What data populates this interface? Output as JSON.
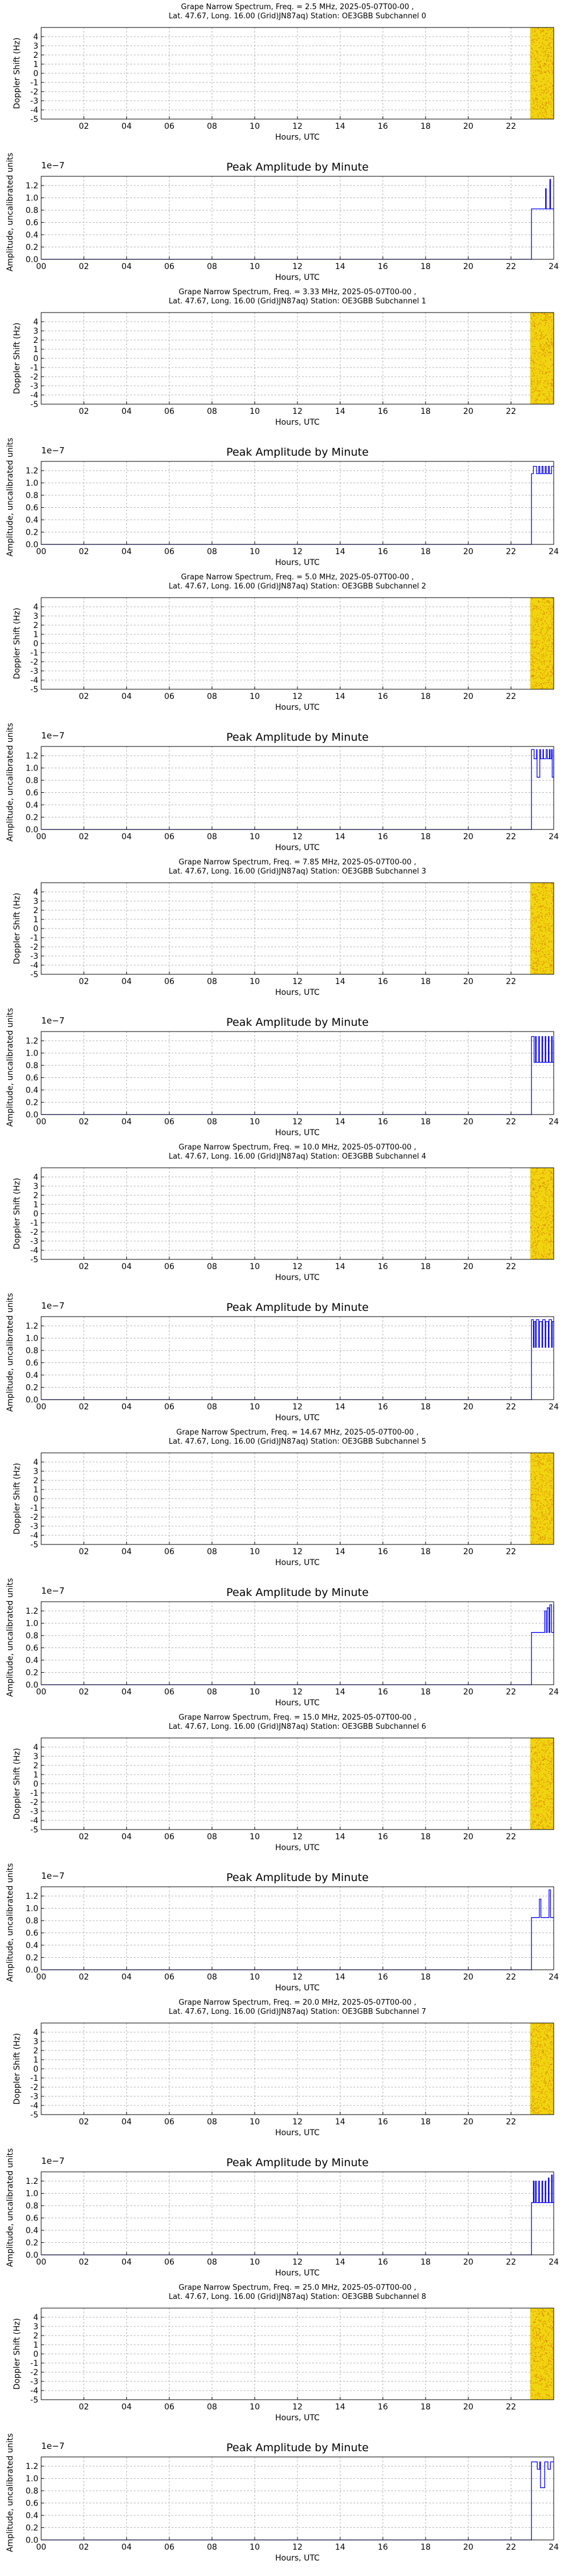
{
  "colors": {
    "spectrum_background": "#f2f0e6",
    "spectrum_fill": "#f1d410",
    "spectrum_speckle": "#d46a00",
    "amplitude_line": "#0000ff",
    "grid": "#b0b0b0"
  },
  "shared": {
    "title_line2": "Lat.  47.67, Long.  16.00 (Grid)JN87aq) Station: OE3GBB Subchannel",
    "spectrum_ylabel": "Doppler Shift (Hz)",
    "spectrum_xlabel": "Hours, UTC",
    "spectrum_xticks": [
      "02",
      "04",
      "06",
      "08",
      "10",
      "12",
      "14",
      "16",
      "18",
      "20",
      "22"
    ],
    "spectrum_yticks": [
      "4",
      "3",
      "2",
      "1",
      "0",
      "-1",
      "-2",
      "-3",
      "-4",
      "-5"
    ],
    "amp_title": "Peak Amplitude by Minute",
    "amp_ylabel": "Amplitude, uncalibrated units",
    "amp_xlabel": "Hours, UTC",
    "amp_offset_label": "1e−7",
    "amp_xticks": [
      "00",
      "02",
      "04",
      "06",
      "08",
      "10",
      "12",
      "14",
      "16",
      "18",
      "20",
      "22",
      "24"
    ],
    "amp_yticks": [
      "1.2",
      "1.0",
      "0.8",
      "0.6",
      "0.4",
      "0.2",
      "0.0"
    ]
  },
  "chart_data": [
    {
      "type": "heatmap",
      "title": "Grape Narrow Spectrum, Freq. = 2.5 MHz, 2025-05-07T00-00 ,",
      "subchannel": "0",
      "xlabel": "Hours, UTC",
      "ylabel": "Doppler Shift (Hz)",
      "xlim": [
        0,
        24
      ],
      "ylim": [
        -5,
        5
      ],
      "data_hours": [
        22.9,
        24.0
      ],
      "grid": true
    },
    {
      "type": "line",
      "title": "Peak Amplitude by Minute",
      "xlabel": "Hours, UTC",
      "ylabel": "Amplitude, uncalibrated units",
      "ylim": [
        0,
        1.35
      ],
      "y_scale": "1e-7",
      "xlim": [
        0,
        24
      ],
      "x": [
        0,
        22.95,
        22.96,
        23.6,
        23.62,
        23.65,
        23.8,
        23.82,
        23.85,
        24.0
      ],
      "values": [
        0,
        0,
        0.82,
        0.82,
        1.15,
        0.82,
        0.82,
        1.3,
        0.82,
        0.82
      ]
    },
    {
      "type": "heatmap",
      "title": "Grape Narrow Spectrum, Freq. = 3.33 MHz, 2025-05-07T00-00 ,",
      "subchannel": "1",
      "xlabel": "Hours, UTC",
      "ylabel": "Doppler Shift (Hz)",
      "xlim": [
        0,
        24
      ],
      "ylim": [
        -5,
        5
      ],
      "data_hours": [
        22.9,
        24.0
      ],
      "grid": true
    },
    {
      "type": "line",
      "title": "Peak Amplitude by Minute",
      "xlabel": "Hours, UTC",
      "ylabel": "Amplitude, uncalibrated units",
      "ylim": [
        0,
        1.35
      ],
      "y_scale": "1e-7",
      "xlim": [
        0,
        24
      ],
      "x": [
        0,
        22.95,
        22.96,
        23.05,
        23.15,
        23.2,
        23.3,
        23.35,
        23.45,
        23.5,
        23.6,
        23.65,
        23.75,
        23.8,
        23.9,
        24.0
      ],
      "values": [
        0,
        0,
        1.15,
        1.27,
        1.27,
        1.15,
        1.27,
        1.15,
        1.27,
        1.15,
        1.27,
        1.15,
        1.27,
        1.15,
        1.27,
        1.27
      ]
    },
    {
      "type": "heatmap",
      "title": "Grape Narrow Spectrum, Freq. = 5.0 MHz, 2025-05-07T00-00 ,",
      "subchannel": "2",
      "xlabel": "Hours, UTC",
      "ylabel": "Doppler Shift (Hz)",
      "xlim": [
        0,
        24
      ],
      "ylim": [
        -5,
        5
      ],
      "data_hours": [
        22.9,
        24.0
      ],
      "grid": true
    },
    {
      "type": "line",
      "title": "Peak Amplitude by Minute",
      "xlabel": "Hours, UTC",
      "ylabel": "Amplitude, uncalibrated units",
      "ylim": [
        0,
        1.35
      ],
      "y_scale": "1e-7",
      "xlim": [
        0,
        24
      ],
      "x": [
        0,
        22.95,
        22.96,
        23.05,
        23.08,
        23.2,
        23.22,
        23.35,
        23.38,
        23.5,
        23.52,
        23.65,
        23.7,
        23.8,
        23.83,
        23.9,
        23.93,
        24.0
      ],
      "values": [
        0,
        0,
        1.3,
        1.3,
        1.15,
        1.3,
        0.85,
        1.3,
        1.15,
        1.3,
        1.15,
        1.3,
        1.15,
        1.3,
        1.15,
        1.3,
        0.85,
        1.3
      ]
    },
    {
      "type": "heatmap",
      "title": "Grape Narrow Spectrum, Freq. = 7.85 MHz, 2025-05-07T00-00 ,",
      "subchannel": "3",
      "xlabel": "Hours, UTC",
      "ylabel": "Doppler Shift (Hz)",
      "xlim": [
        0,
        24
      ],
      "ylim": [
        -5,
        5
      ],
      "data_hours": [
        22.9,
        24.0
      ],
      "grid": true
    },
    {
      "type": "line",
      "title": "Peak Amplitude by Minute",
      "xlabel": "Hours, UTC",
      "ylabel": "Amplitude, uncalibrated units",
      "ylim": [
        0,
        1.35
      ],
      "y_scale": "1e-7",
      "xlim": [
        0,
        24
      ],
      "x": [
        0,
        22.95,
        22.96,
        23.05,
        23.08,
        23.15,
        23.18,
        23.3,
        23.33,
        23.45,
        23.48,
        23.6,
        23.63,
        23.75,
        23.78,
        23.9,
        23.93,
        24.0
      ],
      "values": [
        0,
        0,
        1.27,
        1.27,
        0.85,
        1.27,
        0.85,
        1.27,
        0.85,
        1.27,
        0.85,
        1.27,
        0.85,
        1.27,
        0.85,
        1.27,
        0.85,
        1.2
      ]
    },
    {
      "type": "heatmap",
      "title": "Grape Narrow Spectrum, Freq. = 10.0 MHz, 2025-05-07T00-00 ,",
      "subchannel": "4",
      "xlabel": "Hours, UTC",
      "ylabel": "Doppler Shift (Hz)",
      "xlim": [
        0,
        24
      ],
      "ylim": [
        -5,
        5
      ],
      "data_hours": [
        22.9,
        24.0
      ],
      "grid": true
    },
    {
      "type": "line",
      "title": "Peak Amplitude by Minute",
      "xlabel": "Hours, UTC",
      "ylabel": "Amplitude, uncalibrated units",
      "ylim": [
        0,
        1.35
      ],
      "y_scale": "1e-7",
      "xlim": [
        0,
        24
      ],
      "x": [
        0,
        22.95,
        22.96,
        23.05,
        23.08,
        23.15,
        23.18,
        23.3,
        23.33,
        23.45,
        23.48,
        23.6,
        23.63,
        23.75,
        23.78,
        23.9,
        23.93,
        24.0
      ],
      "values": [
        0,
        0,
        1.3,
        0.85,
        1.27,
        0.85,
        1.3,
        0.85,
        1.27,
        0.85,
        1.3,
        0.85,
        1.27,
        0.85,
        1.3,
        0.85,
        1.27,
        0.85
      ]
    },
    {
      "type": "heatmap",
      "title": "Grape Narrow Spectrum, Freq. = 14.67 MHz, 2025-05-07T00-00 ,",
      "subchannel": "5",
      "xlabel": "Hours, UTC",
      "ylabel": "Doppler Shift (Hz)",
      "xlim": [
        0,
        24
      ],
      "ylim": [
        -5,
        5
      ],
      "data_hours": [
        22.9,
        24.0
      ],
      "grid": true
    },
    {
      "type": "line",
      "title": "Peak Amplitude by Minute",
      "xlabel": "Hours, UTC",
      "ylabel": "Amplitude, uncalibrated units",
      "ylim": [
        0,
        1.35
      ],
      "y_scale": "1e-7",
      "xlim": [
        0,
        24
      ],
      "x": [
        0,
        22.95,
        22.96,
        23.55,
        23.58,
        23.65,
        23.7,
        23.78,
        23.82,
        23.9,
        24.0
      ],
      "values": [
        0,
        0,
        0.85,
        0.85,
        1.2,
        0.85,
        1.25,
        0.85,
        1.3,
        0.85,
        1.3
      ]
    },
    {
      "type": "heatmap",
      "title": "Grape Narrow Spectrum, Freq. = 15.0 MHz, 2025-05-07T00-00 ,",
      "subchannel": "6",
      "xlabel": "Hours, UTC",
      "ylabel": "Doppler Shift (Hz)",
      "xlim": [
        0,
        24
      ],
      "ylim": [
        -5,
        5
      ],
      "data_hours": [
        22.9,
        24.0
      ],
      "grid": true
    },
    {
      "type": "line",
      "title": "Peak Amplitude by Minute",
      "xlabel": "Hours, UTC",
      "ylabel": "Amplitude, uncalibrated units",
      "ylim": [
        0,
        1.35
      ],
      "y_scale": "1e-7",
      "xlim": [
        0,
        24
      ],
      "x": [
        0,
        22.95,
        22.96,
        23.3,
        23.33,
        23.4,
        23.75,
        23.78,
        23.85,
        24.0
      ],
      "values": [
        0,
        0,
        0.85,
        0.85,
        1.15,
        0.85,
        0.85,
        1.3,
        0.85,
        0.85
      ]
    },
    {
      "type": "heatmap",
      "title": "Grape Narrow Spectrum, Freq. = 20.0 MHz, 2025-05-07T00-00 ,",
      "subchannel": "7",
      "xlabel": "Hours, UTC",
      "ylabel": "Doppler Shift (Hz)",
      "xlim": [
        0,
        24
      ],
      "ylim": [
        -5,
        5
      ],
      "data_hours": [
        22.9,
        24.0
      ],
      "grid": true
    },
    {
      "type": "line",
      "title": "Peak Amplitude by Minute",
      "xlabel": "Hours, UTC",
      "ylabel": "Amplitude, uncalibrated units",
      "ylim": [
        0,
        1.35
      ],
      "y_scale": "1e-7",
      "xlim": [
        0,
        24
      ],
      "x": [
        0,
        22.95,
        22.96,
        23.05,
        23.08,
        23.15,
        23.18,
        23.3,
        23.33,
        23.45,
        23.48,
        23.6,
        23.63,
        23.75,
        23.78,
        23.9,
        23.93,
        24.0
      ],
      "values": [
        0,
        0,
        0.85,
        1.2,
        0.85,
        1.2,
        0.85,
        1.2,
        0.85,
        1.2,
        0.85,
        1.2,
        0.85,
        1.25,
        0.85,
        1.3,
        0.85,
        1.3
      ]
    },
    {
      "type": "heatmap",
      "title": "Grape Narrow Spectrum, Freq. = 25.0 MHz, 2025-05-07T00-00 ,",
      "subchannel": "8",
      "xlabel": "Hours, UTC",
      "ylabel": "Doppler Shift (Hz)",
      "xlim": [
        0,
        24
      ],
      "ylim": [
        -5,
        5
      ],
      "data_hours": [
        22.9,
        24.0
      ],
      "grid": true
    },
    {
      "type": "line",
      "title": "Peak Amplitude by Minute",
      "xlabel": "Hours, UTC",
      "ylabel": "Amplitude, uncalibrated units",
      "ylim": [
        0,
        1.35
      ],
      "y_scale": "1e-7",
      "xlim": [
        0,
        24
      ],
      "x": [
        0,
        22.95,
        22.96,
        23.2,
        23.23,
        23.35,
        23.38,
        23.55,
        23.58,
        23.7,
        23.73,
        23.85,
        23.88,
        24.0
      ],
      "values": [
        0,
        0,
        1.27,
        1.27,
        1.15,
        1.27,
        0.85,
        0.85,
        1.27,
        1.27,
        1.15,
        1.27,
        1.27,
        1.27
      ]
    }
  ]
}
